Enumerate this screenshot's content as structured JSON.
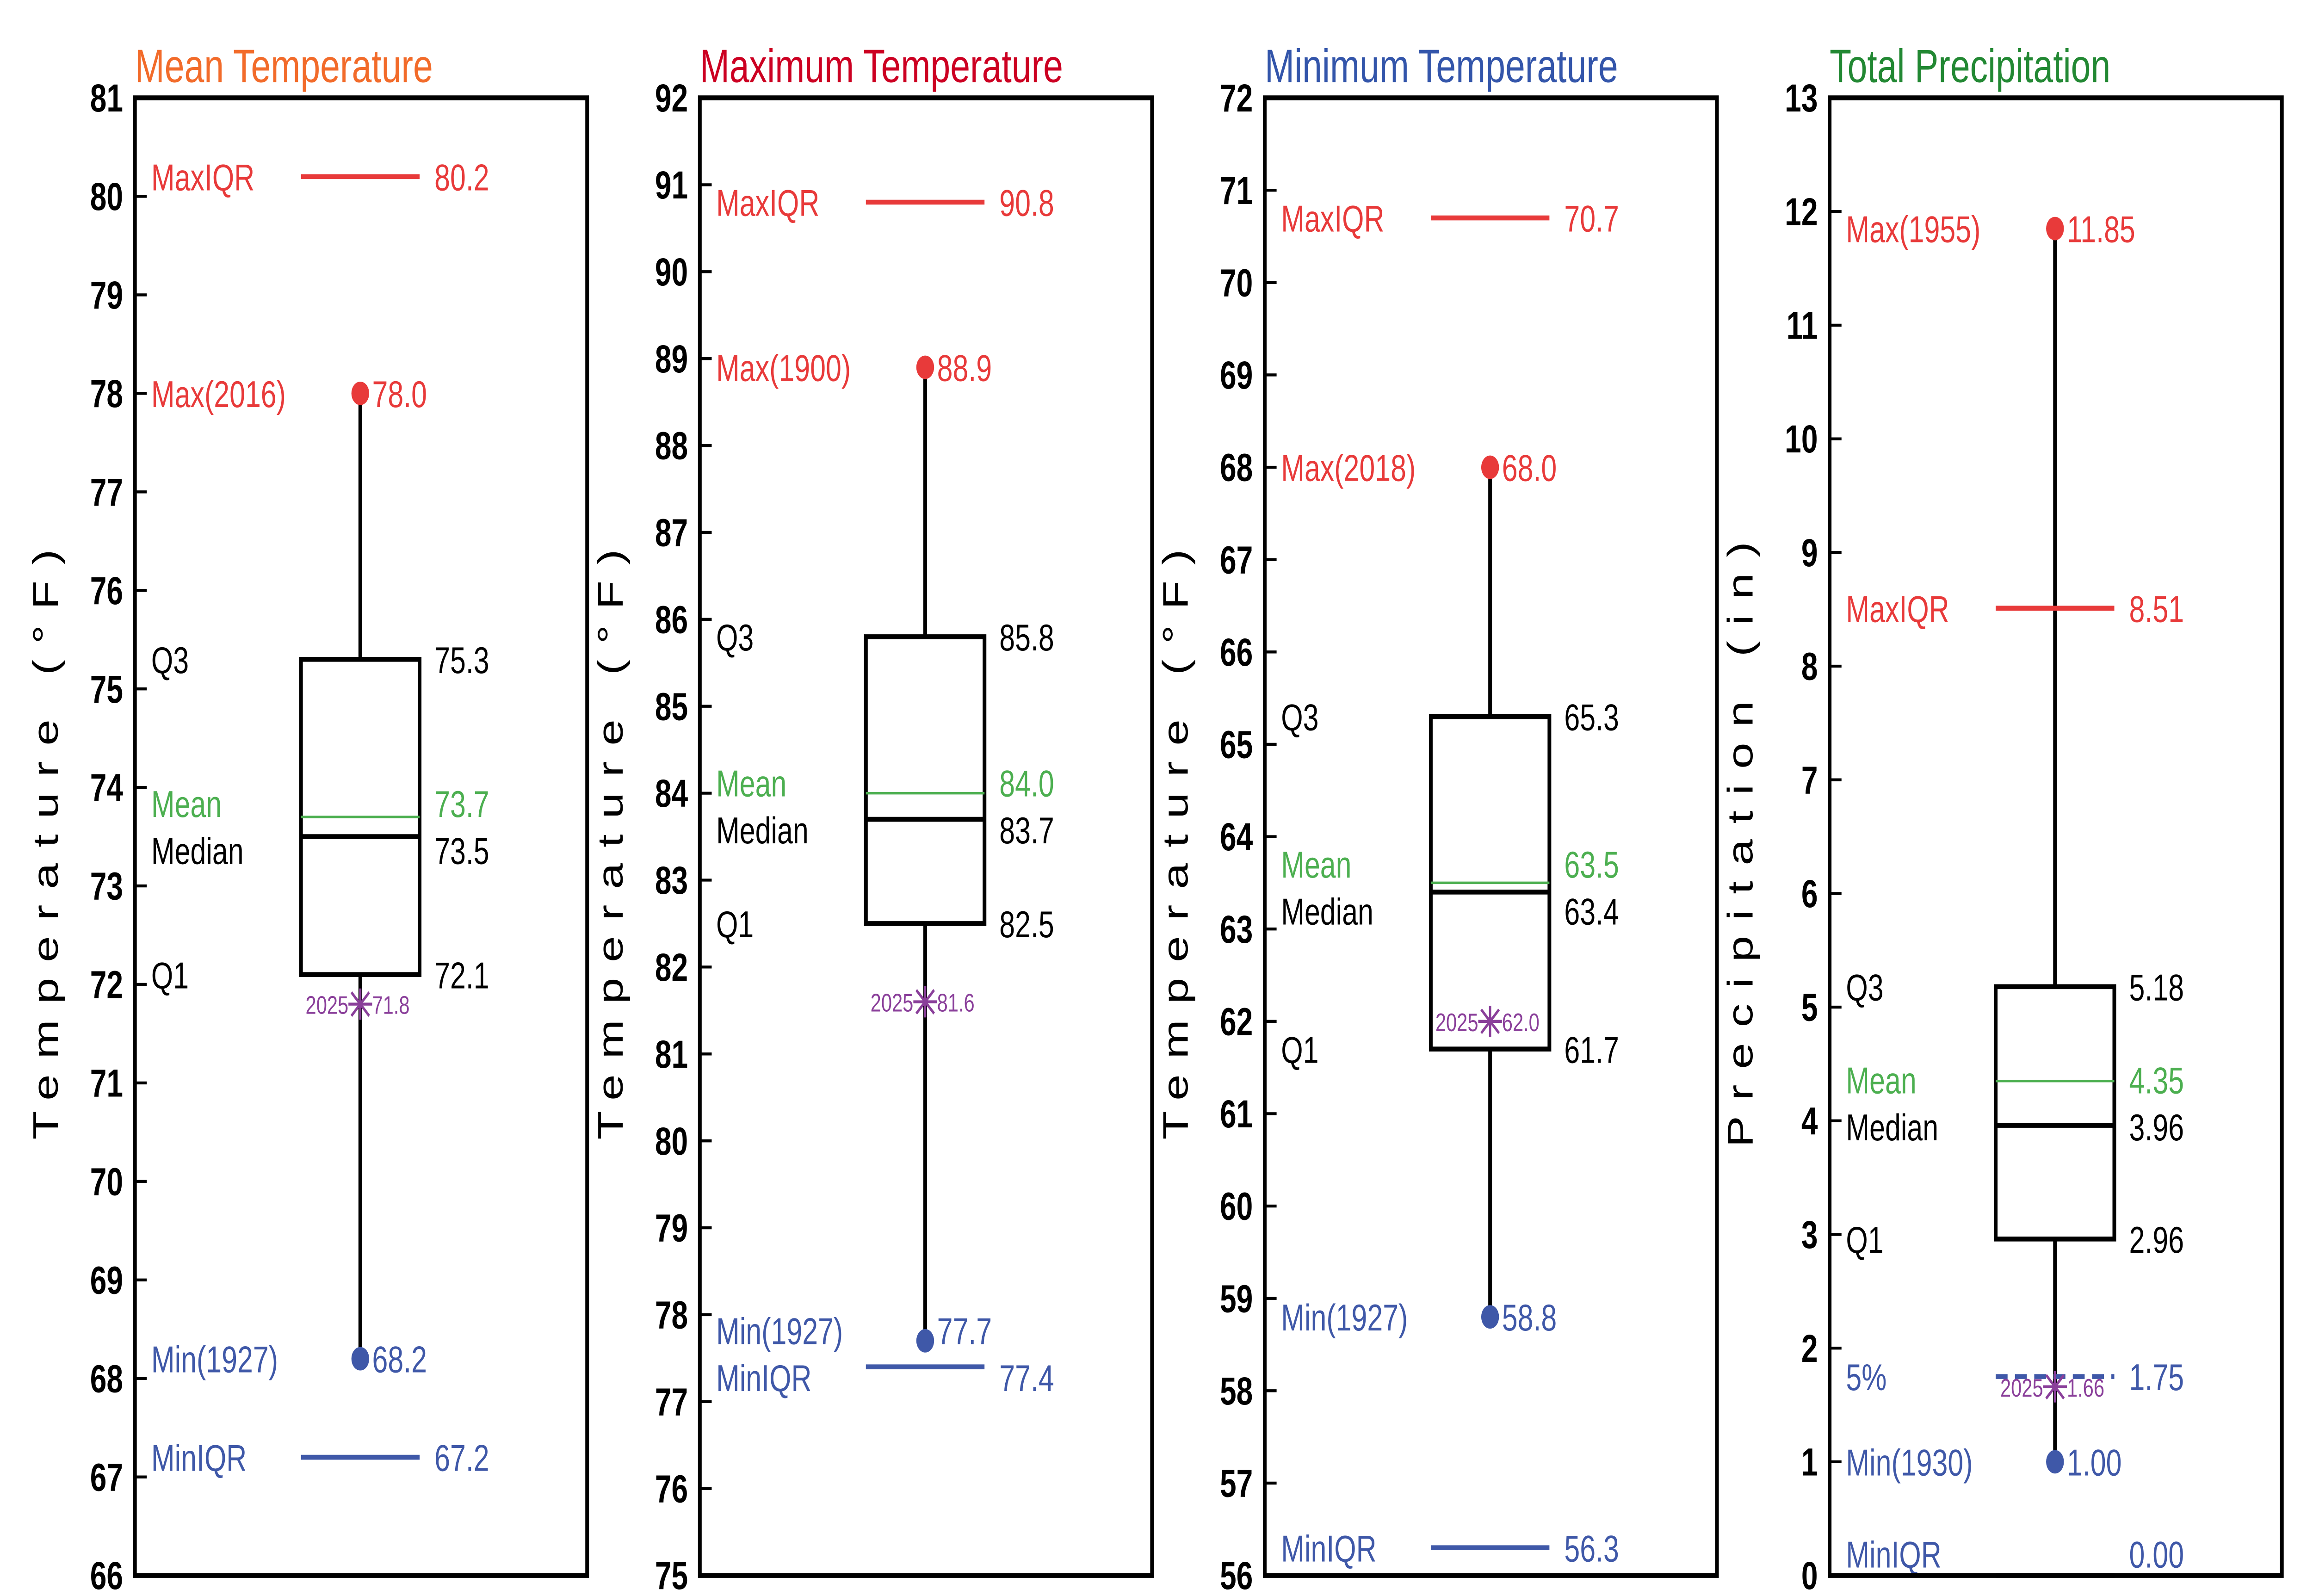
{
  "colors": {
    "max": "#e83a3a",
    "min": "#3f58a8",
    "mean": "#4caf50",
    "stat": "#000000",
    "y2025": "#8a3f9a"
  },
  "chart_data": [
    {
      "type": "box",
      "title": "Mean Temperature",
      "title_color": "#f26b2a",
      "ylabel": "Temperature (°F)",
      "ylim": [
        66,
        81
      ],
      "tick_step": 1,
      "decimals": 1,
      "stats": [
        {
          "key": "maxiqr",
          "label": "MaxIQR",
          "value": 80.2,
          "value_text": "80.2"
        },
        {
          "key": "max",
          "label": "Max(2016)",
          "value": 78.0,
          "value_text": "78.0"
        },
        {
          "key": "q3",
          "label": "Q3",
          "value": 75.3,
          "value_text": "75.3"
        },
        {
          "key": "mean",
          "label": "Mean",
          "value": 73.7,
          "value_text": "73.7"
        },
        {
          "key": "median",
          "label": "Median",
          "value": 73.5,
          "value_text": "73.5"
        },
        {
          "key": "q1",
          "label": "Q1",
          "value": 72.1,
          "value_text": "72.1"
        },
        {
          "key": "min",
          "label": "Min(1927)",
          "value": 68.2,
          "value_text": "68.2"
        },
        {
          "key": "miniqr",
          "label": "MinIQR",
          "value": 67.2,
          "value_text": "67.2"
        }
      ],
      "current": {
        "year": "2025",
        "value": 71.8,
        "value_text": "71.8"
      }
    },
    {
      "type": "box",
      "title": "Maximum Temperature",
      "title_color": "#cc0022",
      "ylabel": "Temperature (°F)",
      "ylim": [
        75,
        92
      ],
      "tick_step": 1,
      "decimals": 1,
      "stats": [
        {
          "key": "maxiqr",
          "label": "MaxIQR",
          "value": 90.8,
          "value_text": "90.8"
        },
        {
          "key": "max",
          "label": "Max(1900)",
          "value": 88.9,
          "value_text": "88.9"
        },
        {
          "key": "q3",
          "label": "Q3",
          "value": 85.8,
          "value_text": "85.8"
        },
        {
          "key": "mean",
          "label": "Mean",
          "value": 84.0,
          "value_text": "84.0"
        },
        {
          "key": "median",
          "label": "Median",
          "value": 83.7,
          "value_text": "83.7"
        },
        {
          "key": "q1",
          "label": "Q1",
          "value": 82.5,
          "value_text": "82.5"
        },
        {
          "key": "min",
          "label": "Min(1927)",
          "value": 77.7,
          "value_text": "77.7"
        },
        {
          "key": "miniqr",
          "label": "MinIQR",
          "value": 77.4,
          "value_text": "77.4"
        }
      ],
      "current": {
        "year": "2025",
        "value": 81.6,
        "value_text": "81.6"
      }
    },
    {
      "type": "box",
      "title": "Minimum Temperature",
      "title_color": "#3355aa",
      "ylabel": "Temperature (°F)",
      "ylim": [
        56,
        72
      ],
      "tick_step": 1,
      "decimals": 1,
      "stats": [
        {
          "key": "maxiqr",
          "label": "MaxIQR",
          "value": 70.7,
          "value_text": "70.7"
        },
        {
          "key": "max",
          "label": "Max(2018)",
          "value": 68.0,
          "value_text": "68.0"
        },
        {
          "key": "q3",
          "label": "Q3",
          "value": 65.3,
          "value_text": "65.3"
        },
        {
          "key": "mean",
          "label": "Mean",
          "value": 63.5,
          "value_text": "63.5"
        },
        {
          "key": "median",
          "label": "Median",
          "value": 63.4,
          "value_text": "63.4"
        },
        {
          "key": "q1",
          "label": "Q1",
          "value": 61.7,
          "value_text": "61.7"
        },
        {
          "key": "min",
          "label": "Min(1927)",
          "value": 58.8,
          "value_text": "58.8"
        },
        {
          "key": "miniqr",
          "label": "MinIQR",
          "value": 56.3,
          "value_text": "56.3"
        }
      ],
      "current": {
        "year": "2025",
        "value": 62.0,
        "value_text": "62.0"
      }
    },
    {
      "type": "box",
      "title": "Total Precipitation",
      "title_color": "#228833",
      "ylabel": "Precipitation (in)",
      "ylim": [
        0,
        13
      ],
      "tick_step": 1,
      "decimals": 2,
      "stats": [
        {
          "key": "max",
          "label": "Max(1955)",
          "value": 11.85,
          "value_text": "11.85"
        },
        {
          "key": "maxiqr",
          "label": "MaxIQR",
          "value": 8.51,
          "value_text": "8.51"
        },
        {
          "key": "q3",
          "label": "Q3",
          "value": 5.18,
          "value_text": "5.18"
        },
        {
          "key": "mean",
          "label": "Mean",
          "value": 4.35,
          "value_text": "4.35"
        },
        {
          "key": "median",
          "label": "Median",
          "value": 3.96,
          "value_text": "3.96"
        },
        {
          "key": "q1",
          "label": "Q1",
          "value": 2.96,
          "value_text": "2.96"
        },
        {
          "key": "p5",
          "label": "5%",
          "value": 1.75,
          "value_text": "1.75"
        },
        {
          "key": "min",
          "label": "Min(1930)",
          "value": 1.0,
          "value_text": "1.00"
        },
        {
          "key": "miniqr",
          "label": "MinIQR",
          "value": 0.0,
          "value_text": "0.00"
        }
      ],
      "current": {
        "year": "2025",
        "value": 1.66,
        "value_text": "1.66"
      }
    }
  ]
}
